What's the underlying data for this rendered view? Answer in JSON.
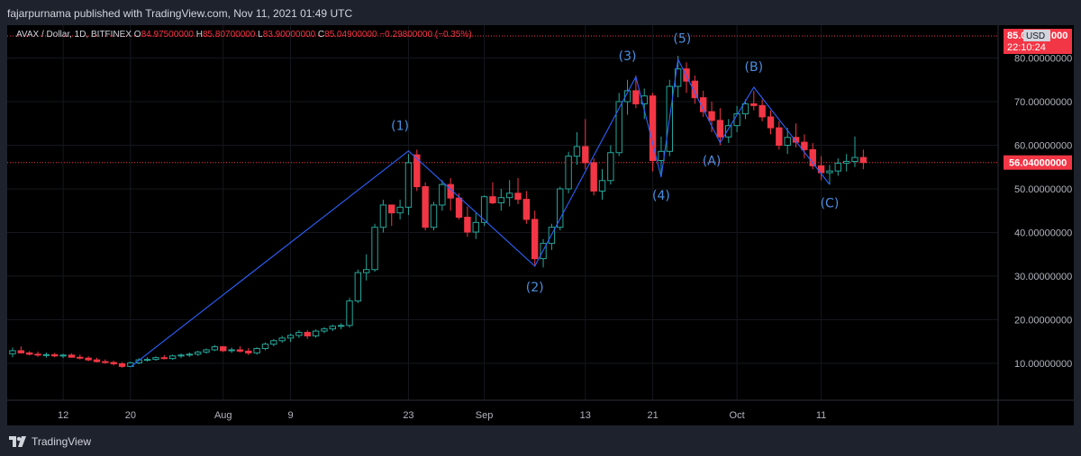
{
  "header": {
    "published": "fajarpurnama published with TradingView.com, Nov 11, 2021 01:49 UTC"
  },
  "legend": {
    "symbol": "AVAX / Dollar, 1D, BITFINEX",
    "o_label": "O",
    "o_value": "84.97500000",
    "h_label": "H",
    "h_value": "85.80700000",
    "l_label": "L",
    "l_value": "83.90000000",
    "c_label": "C",
    "c_value": "85.04900000",
    "change": "−0.29800000 (−0.35%)"
  },
  "price_tag": {
    "price": "85.0",
    "currency": "USD",
    "price_suffix": "000",
    "countdown": "22:10:24"
  },
  "last_price": "56.04000000",
  "footer": {
    "brand": "TradingView",
    "logo_icon": "tradingview-logo-icon"
  },
  "colors": {
    "up": "#26a69a",
    "down": "#f23645",
    "wave": "#2962ff",
    "label": "#4b8fe0",
    "axis_text": "#b2b5be"
  },
  "chart_data": {
    "type": "candlestick",
    "ylim": [
      0,
      86
    ],
    "yticks": [
      {
        "v": 80,
        "label": "80.00000000"
      },
      {
        "v": 70,
        "label": "70.00000000"
      },
      {
        "v": 60,
        "label": "60.00000000"
      },
      {
        "v": 50,
        "label": "50.00000000"
      },
      {
        "v": 40,
        "label": "40.00000000"
      },
      {
        "v": 30,
        "label": "30.00000000"
      },
      {
        "v": 20,
        "label": "20.00000000"
      },
      {
        "v": 10,
        "label": "10.00000000"
      }
    ],
    "xticks": [
      {
        "i": 6,
        "label": "12"
      },
      {
        "i": 14,
        "label": "20"
      },
      {
        "i": 25,
        "label": "Aug"
      },
      {
        "i": 33,
        "label": "9"
      },
      {
        "i": 47,
        "label": "23"
      },
      {
        "i": 56,
        "label": "Sep"
      },
      {
        "i": 68,
        "label": "13"
      },
      {
        "i": 76,
        "label": "21"
      },
      {
        "i": 86,
        "label": "Oct"
      },
      {
        "i": 96,
        "label": "11"
      }
    ],
    "candles": [
      [
        12.2,
        13.6,
        11.4,
        12.9
      ],
      [
        12.9,
        13.9,
        12.3,
        12.4
      ],
      [
        12.4,
        12.8,
        11.8,
        12.1
      ],
      [
        12.1,
        12.7,
        11.5,
        11.9
      ],
      [
        11.9,
        12.5,
        11.3,
        12.0
      ],
      [
        12.0,
        12.4,
        11.4,
        11.7
      ],
      [
        11.7,
        12.2,
        11.2,
        11.9
      ],
      [
        11.9,
        12.3,
        11.3,
        11.4
      ],
      [
        11.4,
        12.0,
        10.9,
        11.2
      ],
      [
        11.2,
        11.6,
        10.5,
        10.8
      ],
      [
        10.8,
        11.3,
        10.2,
        10.4
      ],
      [
        10.4,
        10.9,
        9.9,
        10.2
      ],
      [
        10.2,
        10.6,
        9.5,
        9.9
      ],
      [
        9.9,
        10.3,
        9.0,
        9.3
      ],
      [
        9.3,
        10.4,
        9.1,
        10.1
      ],
      [
        10.1,
        11.2,
        9.8,
        10.8
      ],
      [
        10.8,
        11.4,
        10.4,
        10.9
      ],
      [
        10.9,
        11.6,
        10.6,
        11.3
      ],
      [
        11.3,
        11.9,
        10.9,
        11.1
      ],
      [
        11.1,
        12.0,
        10.8,
        11.7
      ],
      [
        11.7,
        12.3,
        11.2,
        11.9
      ],
      [
        11.9,
        12.5,
        11.5,
        12.1
      ],
      [
        12.1,
        12.9,
        11.7,
        12.6
      ],
      [
        12.6,
        13.4,
        12.2,
        13.1
      ],
      [
        13.1,
        14.2,
        12.8,
        13.8
      ],
      [
        13.8,
        14.0,
        12.6,
        12.9
      ],
      [
        12.9,
        13.6,
        12.4,
        13.1
      ],
      [
        13.1,
        13.9,
        12.5,
        12.8
      ],
      [
        12.8,
        13.5,
        11.9,
        12.4
      ],
      [
        12.4,
        13.7,
        12.0,
        13.4
      ],
      [
        13.4,
        14.8,
        13.0,
        14.4
      ],
      [
        14.4,
        15.6,
        13.9,
        15.2
      ],
      [
        15.2,
        16.3,
        14.7,
        15.8
      ],
      [
        15.8,
        16.8,
        14.9,
        16.4
      ],
      [
        16.4,
        17.6,
        15.8,
        17.1
      ],
      [
        17.1,
        17.6,
        15.6,
        16.3
      ],
      [
        16.3,
        17.8,
        15.9,
        17.4
      ],
      [
        17.4,
        18.3,
        16.9,
        17.9
      ],
      [
        17.9,
        18.9,
        17.4,
        18.5
      ],
      [
        18.5,
        19.2,
        17.8,
        18.7
      ],
      [
        18.7,
        25.0,
        18.2,
        24.3
      ],
      [
        24.3,
        31.5,
        23.8,
        30.8
      ],
      [
        30.8,
        35.0,
        29.0,
        31.5
      ],
      [
        31.5,
        42.0,
        31.0,
        41.2
      ],
      [
        41.2,
        47.5,
        40.0,
        46.3
      ],
      [
        46.3,
        45.8,
        41.5,
        44.5
      ],
      [
        44.5,
        47.5,
        43.0,
        45.8
      ],
      [
        45.8,
        58.0,
        44.0,
        56.0
      ],
      [
        57.8,
        59.0,
        49.5,
        50.5
      ],
      [
        50.5,
        51.5,
        40.5,
        41.2
      ],
      [
        41.2,
        47.0,
        40.5,
        46.3
      ],
      [
        46.3,
        52.0,
        45.0,
        51.0
      ],
      [
        51.0,
        52.5,
        45.0,
        47.9
      ],
      [
        47.9,
        49.0,
        43.0,
        43.5
      ],
      [
        43.5,
        46.0,
        39.0,
        40.1
      ],
      [
        40.1,
        44.5,
        38.5,
        42.3
      ],
      [
        42.3,
        48.5,
        41.5,
        48.2
      ],
      [
        48.2,
        51.5,
        46.5,
        46.8
      ],
      [
        46.8,
        50.0,
        45.0,
        48.0
      ],
      [
        48.0,
        52.0,
        46.0,
        49.0
      ],
      [
        49.0,
        52.5,
        46.5,
        47.6
      ],
      [
        47.6,
        49.5,
        42.0,
        43.0
      ],
      [
        43.0,
        45.0,
        32.5,
        34.0
      ],
      [
        34.0,
        38.5,
        32.0,
        37.5
      ],
      [
        37.5,
        42.0,
        36.0,
        41.2
      ],
      [
        41.2,
        50.5,
        40.5,
        50.0
      ],
      [
        50.0,
        58.5,
        49.0,
        57.5
      ],
      [
        57.5,
        63.0,
        55.5,
        59.7
      ],
      [
        59.7,
        66.0,
        54.5,
        56.0
      ],
      [
        56.0,
        57.0,
        48.5,
        49.5
      ],
      [
        49.5,
        54.5,
        47.5,
        51.9
      ],
      [
        51.9,
        60.0,
        51.0,
        58.3
      ],
      [
        58.3,
        72.0,
        57.5,
        70.0
      ],
      [
        70.0,
        75.0,
        67.0,
        72.5
      ],
      [
        72.5,
        76.0,
        68.5,
        69.5
      ],
      [
        69.5,
        73.0,
        66.0,
        71.3
      ],
      [
        71.3,
        72.0,
        54.0,
        56.5
      ],
      [
        56.5,
        62.0,
        53.0,
        58.6
      ],
      [
        58.6,
        75.0,
        57.5,
        73.5
      ],
      [
        73.5,
        80.5,
        71.0,
        77.5
      ],
      [
        77.5,
        79.0,
        72.0,
        74.7
      ],
      [
        74.7,
        76.0,
        69.5,
        70.9
      ],
      [
        70.9,
        72.5,
        66.5,
        67.7
      ],
      [
        67.7,
        70.0,
        63.0,
        65.7
      ],
      [
        65.7,
        68.5,
        60.0,
        61.9
      ],
      [
        61.9,
        66.0,
        60.5,
        64.5
      ],
      [
        64.5,
        69.0,
        63.0,
        67.2
      ],
      [
        67.2,
        70.5,
        66.0,
        69.5
      ],
      [
        69.5,
        72.5,
        68.0,
        69.1
      ],
      [
        69.1,
        70.5,
        65.5,
        66.5
      ],
      [
        66.5,
        68.0,
        62.5,
        64.0
      ],
      [
        64.0,
        65.5,
        59.0,
        60.0
      ],
      [
        60.0,
        64.0,
        58.0,
        61.8
      ],
      [
        61.8,
        65.0,
        59.5,
        60.7
      ],
      [
        60.7,
        62.5,
        57.0,
        59.0
      ],
      [
        59.0,
        60.5,
        54.5,
        55.3
      ],
      [
        55.3,
        57.5,
        52.0,
        53.7
      ],
      [
        53.7,
        55.5,
        51.0,
        54.1
      ],
      [
        54.1,
        57.0,
        53.0,
        55.9
      ],
      [
        55.9,
        58.0,
        54.0,
        56.3
      ],
      [
        56.3,
        62.0,
        55.0,
        57.2
      ],
      [
        57.2,
        59.0,
        54.5,
        56.04
      ]
    ],
    "wave_path": [
      {
        "i": 14,
        "v": 9.2
      },
      {
        "i": 47,
        "v": 58.7
      },
      {
        "i": 62,
        "v": 32.3
      },
      {
        "i": 74,
        "v": 75.7
      },
      {
        "i": 77,
        "v": 52.7
      },
      {
        "i": 79,
        "v": 79.7
      },
      {
        "i": 84,
        "v": 60.6
      },
      {
        "i": 88,
        "v": 73.3
      },
      {
        "i": 97,
        "v": 51.0
      }
    ],
    "wave_labels": [
      {
        "text": "(1)",
        "i": 46,
        "v": 63.5
      },
      {
        "text": "(2)",
        "i": 62,
        "v": 26.5
      },
      {
        "text": "(3)",
        "i": 73,
        "v": 79.5
      },
      {
        "text": "(4)",
        "i": 77,
        "v": 47.5
      },
      {
        "text": "(5)",
        "i": 79.5,
        "v": 83.5
      },
      {
        "text": "(A)",
        "i": 83,
        "v": 55.5
      },
      {
        "text": "(B)",
        "i": 88,
        "v": 77.0
      },
      {
        "text": "(C)",
        "i": 97,
        "v": 45.8
      }
    ]
  }
}
